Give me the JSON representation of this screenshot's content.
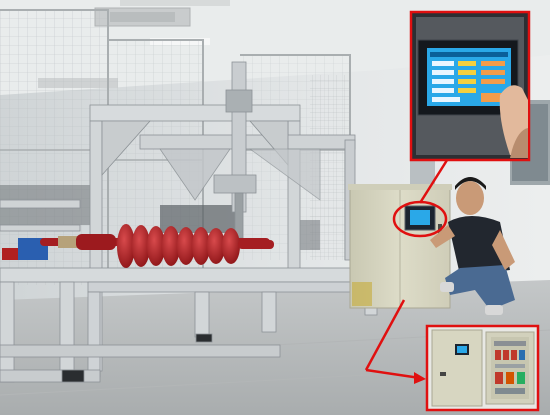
{
  "photo": {
    "subject": "insulator-test-rig",
    "colors": {
      "wall": "#dfe3e4",
      "ceiling": "#e9ecec",
      "floor": "#b9bcbd",
      "aluminum": "#d4d8da",
      "aluminum_dark": "#9aa0a3",
      "insulator": "#b42226",
      "cabinet": "#d9d8c4",
      "highlight": "#e01010",
      "screen_bg": "#1e2a3a",
      "screen_ui": "#2aa8e8",
      "shirt": "#22272f",
      "jeans": "#4a6a92"
    }
  },
  "inset_top": {
    "depicts": "touchscreen-close-up"
  },
  "inset_bottom": {
    "depicts": "open-control-cabinet"
  }
}
